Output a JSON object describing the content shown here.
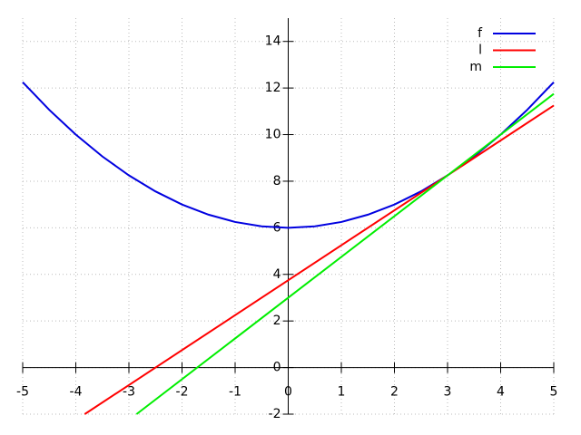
{
  "chart_data": {
    "type": "line",
    "xlim": [
      -5,
      5
    ],
    "ylim": [
      -2,
      15
    ],
    "xticks": [
      -5,
      -4,
      -3,
      -2,
      -1,
      0,
      1,
      2,
      3,
      4,
      5
    ],
    "yticks": [
      -2,
      0,
      2,
      4,
      6,
      8,
      10,
      12,
      14
    ],
    "grid": true,
    "legend": "top-right",
    "series": [
      {
        "name": "f",
        "color": "#0000e0",
        "x": [
          -5,
          -4.5,
          -4,
          -3.5,
          -3,
          -2.5,
          -2,
          -1.5,
          -1,
          -0.5,
          0,
          0.5,
          1,
          1.5,
          2,
          2.5,
          3,
          3.5,
          4,
          4.5,
          5
        ],
        "values": [
          12.25,
          11.0625,
          10,
          9.0625,
          8.25,
          7.5625,
          7,
          6.5625,
          6.25,
          6.0625,
          6,
          6.0625,
          6.25,
          6.5625,
          7,
          7.5625,
          8.25,
          9.0625,
          10,
          11.0625,
          12.25
        ]
      },
      {
        "name": "l",
        "color": "#ff0000",
        "x": [
          -3.833,
          5
        ],
        "values": [
          -2,
          11.25
        ]
      },
      {
        "name": "m",
        "color": "#00ee00",
        "x": [
          -2.857,
          5
        ],
        "values": [
          -2,
          11.75
        ]
      }
    ]
  }
}
